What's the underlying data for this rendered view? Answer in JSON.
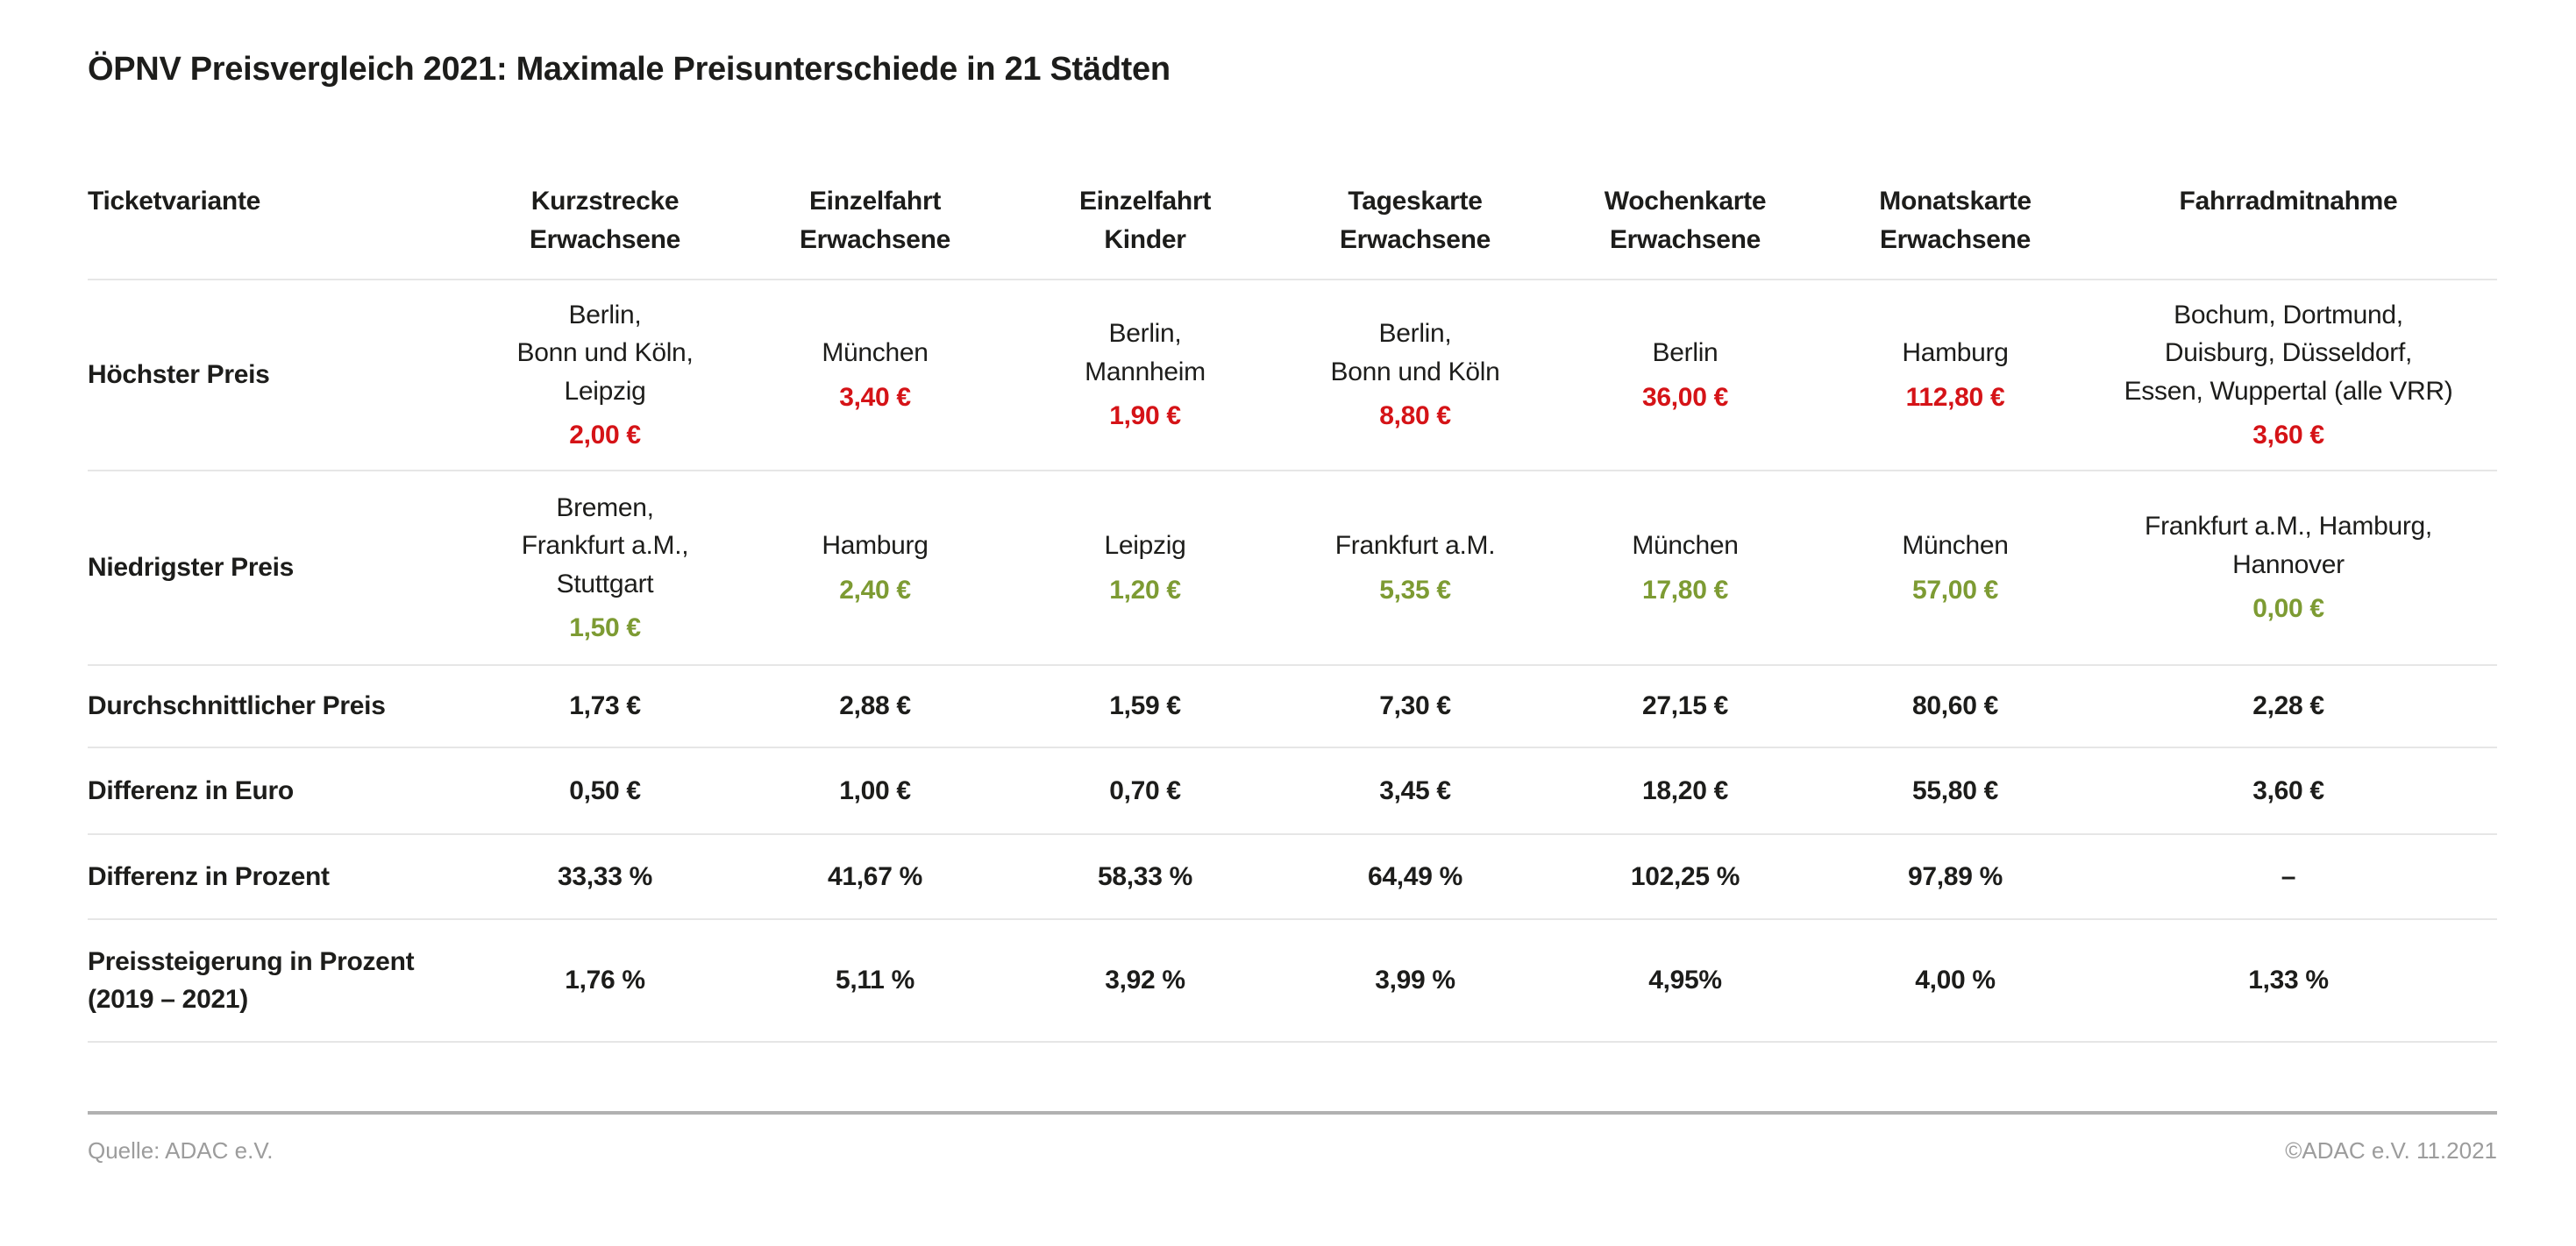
{
  "colors": {
    "highest_price": "#d51317",
    "lowest_price": "#7d9b33",
    "text": "#1d1d1b",
    "footer_text": "#9c9c9c",
    "bottom_bar": "#1e5fab"
  },
  "chart_data": {
    "type": "table",
    "title": "ÖPNV Preisvergleich 2021: Maximale Preisunterschiede in 21 Städten",
    "header": {
      "ticket": "Ticketvariante",
      "cols": [
        "Kurzstrecke\nErwachsene",
        "Einzelfahrt\nErwachsene",
        "Einzelfahrt\nKinder",
        "Tageskarte\nErwachsene",
        "Wochenkarte\nErwachsene",
        "Monatskarte\nErwachsene",
        "Fahrradmitnahme"
      ]
    },
    "rows": {
      "hoechster": {
        "label": "Höchster Preis",
        "price_color": "#d51317",
        "cells": [
          {
            "cities": "Berlin,\nBonn und Köln,\nLeipzig",
            "price": "2,00 €"
          },
          {
            "cities": "München",
            "price": "3,40 €"
          },
          {
            "cities": "Berlin,\nMannheim",
            "price": "1,90 €"
          },
          {
            "cities": "Berlin,\nBonn und Köln",
            "price": "8,80 €"
          },
          {
            "cities": "Berlin",
            "price": "36,00 €"
          },
          {
            "cities": "Hamburg",
            "price": "112,80 €"
          },
          {
            "cities": "Bochum, Dortmund,\nDuisburg, Düsseldorf,\nEssen, Wuppertal (alle VRR)",
            "price": "3,60 €"
          }
        ]
      },
      "niedrigster": {
        "label": "Niedrigster Preis",
        "price_color": "#7d9b33",
        "cells": [
          {
            "cities": "Bremen,\nFrankfurt a.M.,\nStuttgart",
            "price": "1,50 €"
          },
          {
            "cities": "Hamburg",
            "price": "2,40 €"
          },
          {
            "cities": "Leipzig",
            "price": "1,20 €"
          },
          {
            "cities": "Frankfurt a.M.",
            "price": "5,35 €"
          },
          {
            "cities": "München",
            "price": "17,80 €"
          },
          {
            "cities": "München",
            "price": "57,00 €"
          },
          {
            "cities": "Frankfurt a.M., Hamburg,\nHannover",
            "price": "0,00 €"
          }
        ]
      },
      "durchschnitt": {
        "label": "Durchschnittlicher Preis",
        "values": [
          "1,73 €",
          "2,88 €",
          "1,59 €",
          "7,30 €",
          "27,15 €",
          "80,60 €",
          "2,28 €"
        ]
      },
      "diff_euro": {
        "label": "Differenz in Euro",
        "values": [
          "0,50 €",
          "1,00 €",
          "0,70 €",
          "3,45 €",
          "18,20 €",
          "55,80 €",
          "3,60 €"
        ]
      },
      "diff_prozent": {
        "label": "Differenz in Prozent",
        "values": [
          "33,33 %",
          "41,67 %",
          "58,33 %",
          "64,49 %",
          "102,25 %",
          "97,89 %",
          "–"
        ]
      },
      "preissteigerung": {
        "label": "Preissteigerung in Prozent\n(2019 – 2021)",
        "values": [
          "1,76 %",
          "5,11 %",
          "3,92 %",
          "3,99 %",
          "4,95%",
          "4,00 %",
          "1,33 %"
        ]
      }
    }
  },
  "footer": {
    "source": "Quelle: ADAC e.V.",
    "copyright": "©ADAC e.V. 11.2021"
  }
}
